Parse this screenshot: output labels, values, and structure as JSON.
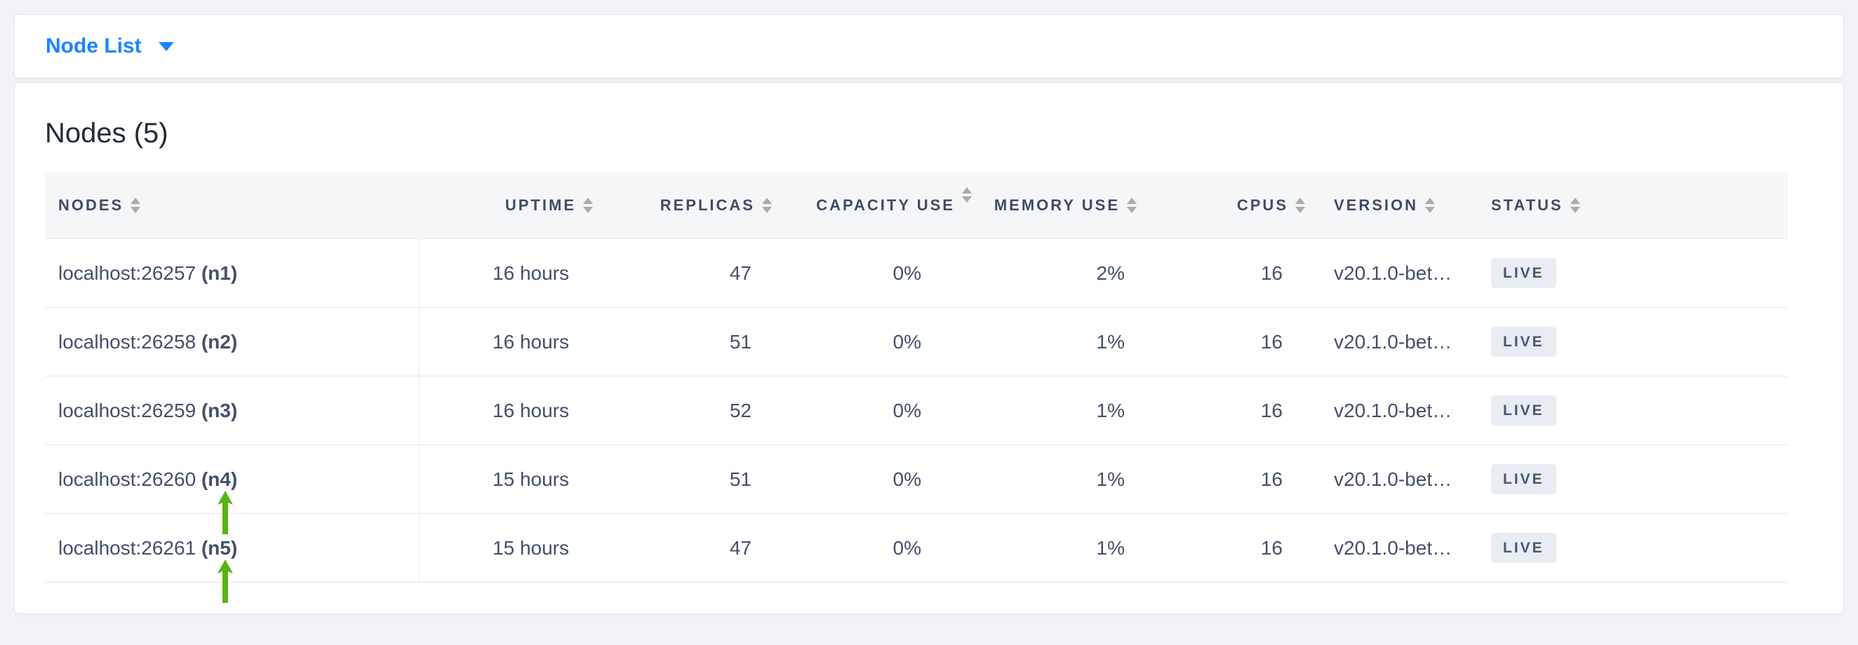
{
  "dropdown": {
    "label": "Node List"
  },
  "section": {
    "title": "Nodes (5)"
  },
  "table": {
    "columns": [
      {
        "key": "nodes",
        "label": "NODES",
        "align": "left",
        "wrap": false
      },
      {
        "key": "uptime",
        "label": "UPTIME",
        "align": "right",
        "wrap": false
      },
      {
        "key": "replicas",
        "label": "REPLICAS",
        "align": "right",
        "wrap": false
      },
      {
        "key": "capacity",
        "label": "CAPACITY USE",
        "align": "right",
        "wrap": true
      },
      {
        "key": "memory",
        "label": "MEMORY USE",
        "align": "right",
        "wrap": false
      },
      {
        "key": "cpus",
        "label": "CPUS",
        "align": "right",
        "wrap": false
      },
      {
        "key": "version",
        "label": "VERSION",
        "align": "left",
        "wrap": false
      },
      {
        "key": "status",
        "label": "STATUS",
        "align": "left",
        "wrap": false
      }
    ],
    "rows": [
      {
        "address": "localhost:26257",
        "name": "(n1)",
        "uptime": "16 hours",
        "replicas": "47",
        "capacity_use": "0%",
        "memory_use": "2%",
        "cpus": "16",
        "version": "v20.1.0-bet…",
        "status": "LIVE",
        "arrow": false
      },
      {
        "address": "localhost:26258",
        "name": "(n2)",
        "uptime": "16 hours",
        "replicas": "51",
        "capacity_use": "0%",
        "memory_use": "1%",
        "cpus": "16",
        "version": "v20.1.0-bet…",
        "status": "LIVE",
        "arrow": false
      },
      {
        "address": "localhost:26259",
        "name": "(n3)",
        "uptime": "16 hours",
        "replicas": "52",
        "capacity_use": "0%",
        "memory_use": "1%",
        "cpus": "16",
        "version": "v20.1.0-bet…",
        "status": "LIVE",
        "arrow": false
      },
      {
        "address": "localhost:26260",
        "name": "(n4)",
        "uptime": "15 hours",
        "replicas": "51",
        "capacity_use": "0%",
        "memory_use": "1%",
        "cpus": "16",
        "version": "v20.1.0-bet…",
        "status": "LIVE",
        "arrow": true
      },
      {
        "address": "localhost:26261",
        "name": "(n5)",
        "uptime": "15 hours",
        "replicas": "47",
        "capacity_use": "0%",
        "memory_use": "1%",
        "cpus": "16",
        "version": "v20.1.0-bet…",
        "status": "LIVE",
        "arrow": true
      }
    ]
  },
  "colors": {
    "accent_blue": "#1a85ff",
    "arrow_green": "#58b314",
    "badge_bg": "#e8ecf3",
    "badge_text": "#475872",
    "header_text": "#3e4c66",
    "body_text": "#43506a",
    "heading_text": "#242b36",
    "page_bg": "#f1f3f9",
    "header_bg": "#f5f6f8",
    "divider": "#e2e6ee",
    "sort_icon": "#a9abae"
  },
  "icons": {
    "dropdown_caret": "caret-down-icon",
    "column_sort": "sort-arrows-icon",
    "row_marker": "green-up-arrow-icon"
  }
}
